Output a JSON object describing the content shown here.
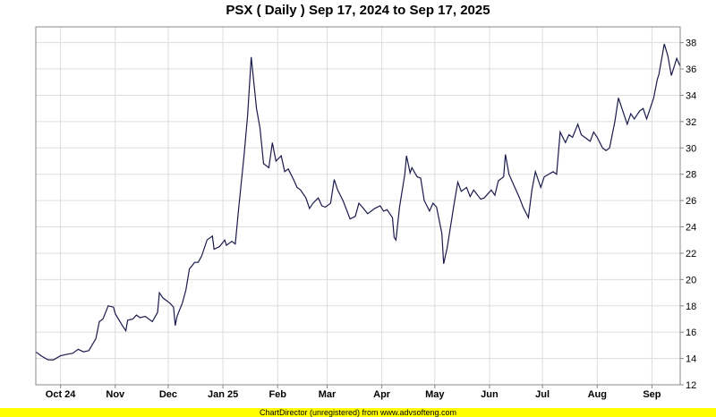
{
  "chart_data": {
    "type": "line",
    "title": "PSX ( Daily ) Sep 17, 2024 to Sep 17, 2025",
    "xlabel": "",
    "ylabel": "",
    "ylim": [
      12,
      39.2
    ],
    "yticks": [
      12,
      14,
      16,
      18,
      20,
      22,
      24,
      26,
      28,
      30,
      32,
      34,
      36,
      38
    ],
    "grid": true,
    "xticks": [
      {
        "label": "Oct 24",
        "date": "2024-10-01"
      },
      {
        "label": "Nov",
        "date": "2024-11-01"
      },
      {
        "label": "Dec",
        "date": "2024-12-01"
      },
      {
        "label": "Jan 25",
        "date": "2025-01-01"
      },
      {
        "label": "Feb",
        "date": "2025-02-01"
      },
      {
        "label": "Mar",
        "date": "2025-03-01"
      },
      {
        "label": "Apr",
        "date": "2025-04-01"
      },
      {
        "label": "May",
        "date": "2025-05-01"
      },
      {
        "label": "Jun",
        "date": "2025-06-01"
      },
      {
        "label": "Jul",
        "date": "2025-07-01"
      },
      {
        "label": "Aug",
        "date": "2025-08-01"
      },
      {
        "label": "Sep",
        "date": "2025-09-01"
      }
    ],
    "xlim": [
      "2024-09-17",
      "2025-09-17"
    ],
    "series": [
      {
        "color": "#1a1a4d",
        "points": [
          [
            "2024-09-17",
            14.5
          ],
          [
            "2024-09-20",
            14.2
          ],
          [
            "2024-09-24",
            13.9
          ],
          [
            "2024-09-27",
            13.9
          ],
          [
            "2024-10-01",
            14.2
          ],
          [
            "2024-10-04",
            14.3
          ],
          [
            "2024-10-08",
            14.4
          ],
          [
            "2024-10-11",
            14.7
          ],
          [
            "2024-10-14",
            14.5
          ],
          [
            "2024-10-17",
            14.6
          ],
          [
            "2024-10-21",
            15.5
          ],
          [
            "2024-10-23",
            16.8
          ],
          [
            "2024-10-25",
            17.0
          ],
          [
            "2024-10-28",
            18.0
          ],
          [
            "2024-10-31",
            17.9
          ],
          [
            "2024-11-01",
            17.4
          ],
          [
            "2024-11-05",
            16.5
          ],
          [
            "2024-11-07",
            16.1
          ],
          [
            "2024-11-08",
            16.9
          ],
          [
            "2024-11-11",
            17.0
          ],
          [
            "2024-11-13",
            17.3
          ],
          [
            "2024-11-15",
            17.1
          ],
          [
            "2024-11-18",
            17.2
          ],
          [
            "2024-11-20",
            17.0
          ],
          [
            "2024-11-22",
            16.8
          ],
          [
            "2024-11-25",
            17.5
          ],
          [
            "2024-11-26",
            19.0
          ],
          [
            "2024-11-28",
            18.6
          ],
          [
            "2024-12-02",
            18.2
          ],
          [
            "2024-12-04",
            17.9
          ],
          [
            "2024-12-05",
            16.5
          ],
          [
            "2024-12-06",
            17.2
          ],
          [
            "2024-12-09",
            18.2
          ],
          [
            "2024-12-11",
            19.2
          ],
          [
            "2024-12-13",
            20.8
          ],
          [
            "2024-12-16",
            21.3
          ],
          [
            "2024-12-18",
            21.3
          ],
          [
            "2024-12-20",
            21.8
          ],
          [
            "2024-12-23",
            23.0
          ],
          [
            "2024-12-26",
            23.3
          ],
          [
            "2024-12-27",
            22.3
          ],
          [
            "2024-12-30",
            22.5
          ],
          [
            "2025-01-02",
            23.0
          ],
          [
            "2025-01-03",
            22.6
          ],
          [
            "2025-01-06",
            22.9
          ],
          [
            "2025-01-08",
            22.7
          ],
          [
            "2025-01-10",
            25.5
          ],
          [
            "2025-01-13",
            29.5
          ],
          [
            "2025-01-15",
            32.5
          ],
          [
            "2025-01-17",
            36.9
          ],
          [
            "2025-01-20",
            33.0
          ],
          [
            "2025-01-22",
            31.5
          ],
          [
            "2025-01-24",
            28.8
          ],
          [
            "2025-01-27",
            28.5
          ],
          [
            "2025-01-29",
            30.4
          ],
          [
            "2025-01-31",
            29.0
          ],
          [
            "2025-02-03",
            29.4
          ],
          [
            "2025-02-05",
            28.2
          ],
          [
            "2025-02-07",
            28.4
          ],
          [
            "2025-02-10",
            27.6
          ],
          [
            "2025-02-12",
            27.0
          ],
          [
            "2025-02-14",
            26.8
          ],
          [
            "2025-02-17",
            26.2
          ],
          [
            "2025-02-19",
            25.4
          ],
          [
            "2025-02-21",
            25.8
          ],
          [
            "2025-02-24",
            26.2
          ],
          [
            "2025-02-26",
            25.6
          ],
          [
            "2025-02-28",
            25.5
          ],
          [
            "2025-03-03",
            25.8
          ],
          [
            "2025-03-05",
            27.6
          ],
          [
            "2025-03-07",
            26.8
          ],
          [
            "2025-03-10",
            26.0
          ],
          [
            "2025-03-12",
            25.3
          ],
          [
            "2025-03-14",
            24.6
          ],
          [
            "2025-03-17",
            24.8
          ],
          [
            "2025-03-19",
            25.8
          ],
          [
            "2025-03-21",
            25.5
          ],
          [
            "2025-03-24",
            25.0
          ],
          [
            "2025-03-26",
            25.2
          ],
          [
            "2025-03-28",
            25.4
          ],
          [
            "2025-03-31",
            25.6
          ],
          [
            "2025-04-02",
            25.2
          ],
          [
            "2025-04-04",
            25.3
          ],
          [
            "2025-04-07",
            24.7
          ],
          [
            "2025-04-08",
            23.2
          ],
          [
            "2025-04-09",
            23.0
          ],
          [
            "2025-04-11",
            25.5
          ],
          [
            "2025-04-14",
            28.0
          ],
          [
            "2025-04-15",
            29.4
          ],
          [
            "2025-04-17",
            28.1
          ],
          [
            "2025-04-18",
            28.5
          ],
          [
            "2025-04-21",
            27.8
          ],
          [
            "2025-04-23",
            27.7
          ],
          [
            "2025-04-25",
            26.0
          ],
          [
            "2025-04-28",
            25.2
          ],
          [
            "2025-04-30",
            25.8
          ],
          [
            "2025-05-02",
            25.5
          ],
          [
            "2025-05-05",
            23.5
          ],
          [
            "2025-05-06",
            21.2
          ],
          [
            "2025-05-08",
            22.4
          ],
          [
            "2025-05-12",
            25.8
          ],
          [
            "2025-05-14",
            27.4
          ],
          [
            "2025-05-16",
            26.7
          ],
          [
            "2025-05-19",
            27.0
          ],
          [
            "2025-05-21",
            26.3
          ],
          [
            "2025-05-23",
            26.8
          ],
          [
            "2025-05-27",
            26.1
          ],
          [
            "2025-05-29",
            26.2
          ],
          [
            "2025-06-02",
            26.8
          ],
          [
            "2025-06-04",
            26.4
          ],
          [
            "2025-06-06",
            27.5
          ],
          [
            "2025-06-09",
            27.8
          ],
          [
            "2025-06-10",
            29.5
          ],
          [
            "2025-06-12",
            28.0
          ],
          [
            "2025-06-16",
            26.8
          ],
          [
            "2025-06-18",
            26.2
          ],
          [
            "2025-06-20",
            25.5
          ],
          [
            "2025-06-23",
            24.7
          ],
          [
            "2025-06-25",
            26.8
          ],
          [
            "2025-06-27",
            28.2
          ],
          [
            "2025-06-30",
            27.0
          ],
          [
            "2025-07-02",
            27.8
          ],
          [
            "2025-07-07",
            28.2
          ],
          [
            "2025-07-09",
            28.0
          ],
          [
            "2025-07-11",
            31.2
          ],
          [
            "2025-07-14",
            30.4
          ],
          [
            "2025-07-16",
            31.0
          ],
          [
            "2025-07-18",
            30.8
          ],
          [
            "2025-07-21",
            31.8
          ],
          [
            "2025-07-23",
            31.0
          ],
          [
            "2025-07-25",
            30.8
          ],
          [
            "2025-07-28",
            30.5
          ],
          [
            "2025-07-30",
            31.2
          ],
          [
            "2025-08-01",
            30.8
          ],
          [
            "2025-08-04",
            30.0
          ],
          [
            "2025-08-06",
            29.8
          ],
          [
            "2025-08-08",
            30.0
          ],
          [
            "2025-08-11",
            32.0
          ],
          [
            "2025-08-13",
            33.8
          ],
          [
            "2025-08-15",
            33.0
          ],
          [
            "2025-08-18",
            31.8
          ],
          [
            "2025-08-20",
            32.6
          ],
          [
            "2025-08-22",
            32.2
          ],
          [
            "2025-08-25",
            32.8
          ],
          [
            "2025-08-27",
            33.0
          ],
          [
            "2025-08-29",
            32.2
          ],
          [
            "2025-09-02",
            33.8
          ],
          [
            "2025-09-04",
            35.2
          ],
          [
            "2025-09-05",
            35.6
          ],
          [
            "2025-09-08",
            37.9
          ],
          [
            "2025-09-10",
            37.0
          ],
          [
            "2025-09-12",
            35.5
          ],
          [
            "2025-09-15",
            36.8
          ],
          [
            "2025-09-17",
            36.2
          ]
        ]
      }
    ]
  },
  "footer": {
    "text": "ChartDirector (unregistered) from www.advsofteng.com",
    "bg_color": "#ffff00"
  }
}
